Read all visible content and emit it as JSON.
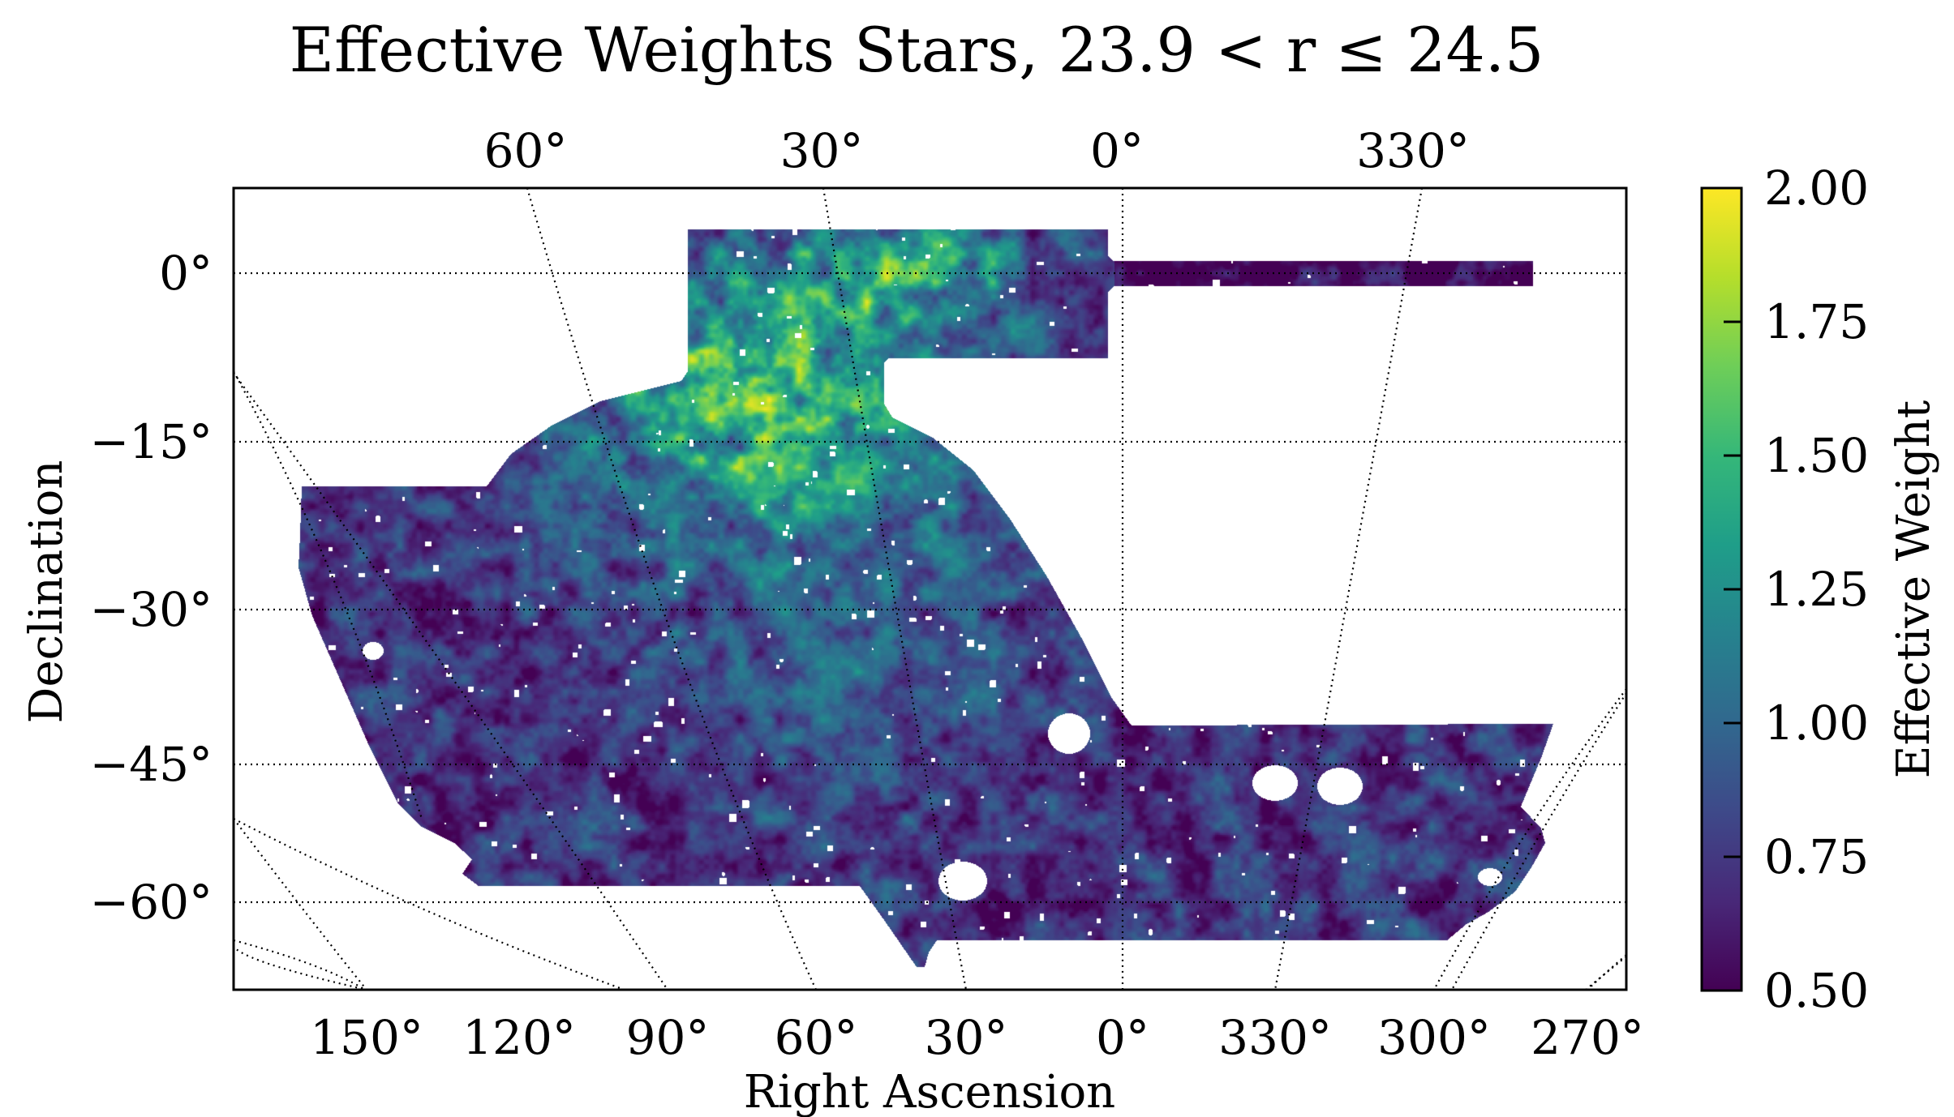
{
  "chart_data": {
    "type": "heatmap",
    "title": "Effective Weights Stars, 23.9 < r ≤ 24.5",
    "projection": "sky map (RA/Dec graticule)",
    "xlabel": "Right Ascension",
    "ylabel": "Declination",
    "x_bottom_ticks": [
      "150°",
      "120°",
      "90°",
      "60°",
      "30°",
      "0°",
      "330°",
      "300°",
      "270°"
    ],
    "x_top_ticks": [
      "60°",
      "30°",
      "0°",
      "330°"
    ],
    "y_ticks": [
      "0°",
      "−15°",
      "−30°",
      "−45°",
      "−60°"
    ],
    "dec_gridlines_deg": [
      0,
      -15,
      -30,
      -45,
      -60
    ],
    "ra_gridlines_deg": [
      150,
      120,
      90,
      60,
      30,
      0,
      330,
      300,
      270
    ],
    "grid": true,
    "colorbar": {
      "label": "Effective Weight",
      "cmap": "viridis",
      "vmin": 0.5,
      "vmax": 2.0,
      "ticks": [
        "0.50",
        "0.75",
        "1.00",
        "1.25",
        "1.50",
        "1.75",
        "2.00"
      ],
      "tick_values": [
        0.5,
        0.75,
        1.0,
        1.25,
        1.5,
        1.75,
        2.0
      ],
      "placement": "right"
    },
    "value_summary": {
      "typical_range": [
        0.7,
        1.3
      ],
      "high_regions": "Effective weight up to ~2.0 in the northern part of the footprint (Dec ≈ +5° to −20°, RA ≈ 30°–60°)",
      "low_regions": "Effective weight ~0.5–0.8 along the eastern and southern edges"
    },
    "masked_holes": [
      {
        "ra_deg": 10,
        "dec_deg": -43
      },
      {
        "ra_deg": 330,
        "dec_deg": -48
      },
      {
        "ra_deg": 322,
        "dec_deg": -48
      },
      {
        "ra_deg": 30,
        "dec_deg": -58
      },
      {
        "ra_deg": 150,
        "dec_deg": -35
      },
      {
        "ra_deg": 285,
        "dec_deg": -58
      }
    ],
    "colormap_stops": [
      "#440154",
      "#482878",
      "#3e4989",
      "#31688e",
      "#26828e",
      "#1f9e89",
      "#35b779",
      "#6ece58",
      "#b5de2b",
      "#fde725"
    ]
  }
}
